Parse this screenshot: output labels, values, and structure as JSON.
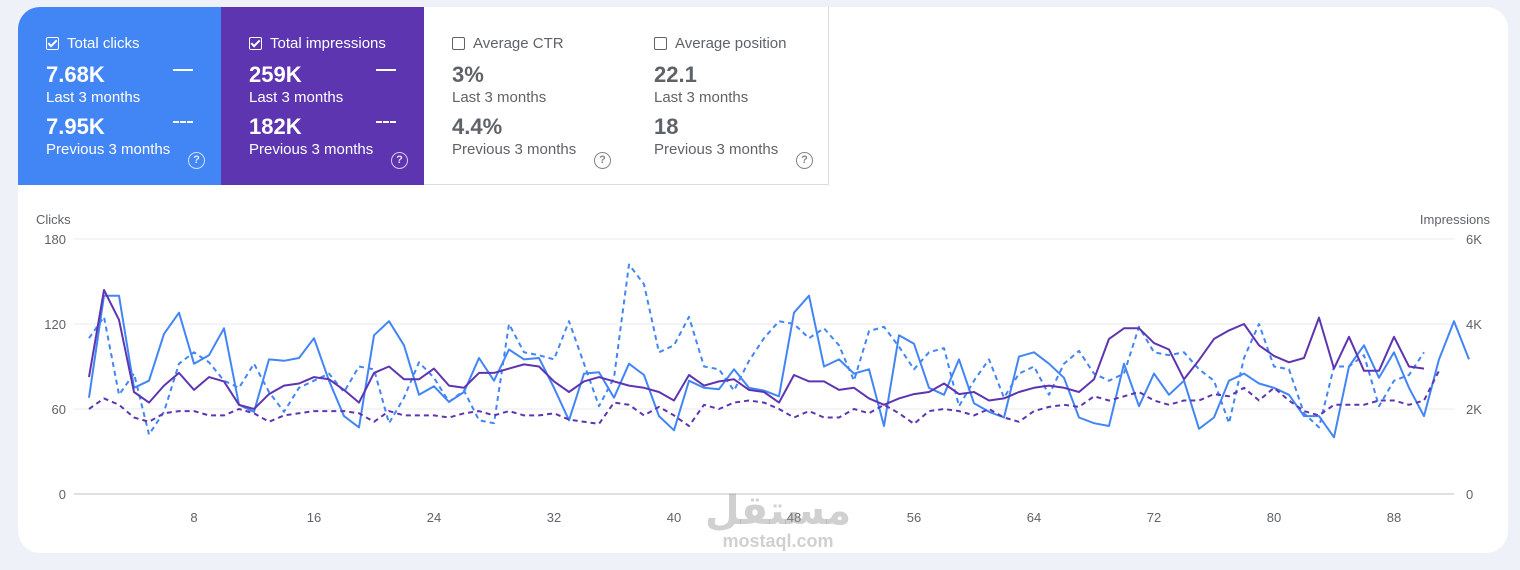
{
  "metrics": [
    {
      "label": "Total clicks",
      "checked": true,
      "value": "7.68K",
      "period": "Last 3 months",
      "prev_value": "7.95K",
      "prev_period": "Previous 3 months",
      "help": "?",
      "color": "#4285f4"
    },
    {
      "label": "Total impressions",
      "checked": true,
      "value": "259K",
      "period": "Last 3 months",
      "prev_value": "182K",
      "prev_period": "Previous 3 months",
      "help": "?",
      "color": "#5e35b1"
    },
    {
      "label": "Average CTR",
      "checked": false,
      "value": "3%",
      "period": "Last 3 months",
      "prev_value": "4.4%",
      "prev_period": "Previous 3 months",
      "help": "?"
    },
    {
      "label": "Average position",
      "checked": false,
      "value": "22.1",
      "period": "Last 3 months",
      "prev_value": "18",
      "prev_period": "Previous 3 months",
      "help": "?"
    }
  ],
  "watermark": {
    "arabic": "مستقل",
    "latin": "mostaql.com"
  },
  "chart_data": {
    "type": "line",
    "left_axis": {
      "label": "Clicks",
      "ticks": [
        "180",
        "120",
        "60",
        "0"
      ],
      "range": [
        0,
        180
      ]
    },
    "right_axis": {
      "label": "Impressions",
      "ticks": [
        "6K",
        "4K",
        "2K",
        "0"
      ],
      "range": [
        0,
        6000
      ]
    },
    "x_ticks": [
      "8",
      "16",
      "24",
      "32",
      "40",
      "48",
      "56",
      "64",
      "72",
      "80",
      "88"
    ],
    "x_range": [
      0,
      92
    ],
    "series": [
      {
        "name": "Total clicks (Last 3 months)",
        "axis": "left",
        "style": "solid",
        "color": "#4285f4",
        "values": [
          68,
          140,
          140,
          75,
          80,
          113,
          128,
          92,
          98,
          117,
          63,
          58,
          95,
          94,
          96,
          110,
          80,
          55,
          47,
          112,
          122,
          105,
          70,
          76,
          65,
          72,
          96,
          80,
          102,
          95,
          96,
          75,
          52,
          85,
          86,
          68,
          92,
          84,
          55,
          45,
          80,
          75,
          74,
          88,
          75,
          73,
          69,
          128,
          140,
          90,
          95,
          85,
          88,
          48,
          112,
          106,
          75,
          70,
          95,
          64,
          58,
          54,
          97,
          100,
          92,
          82,
          54,
          50,
          48,
          92,
          62,
          85,
          70,
          80,
          46,
          54,
          80,
          85,
          78,
          75,
          70,
          55,
          55,
          40,
          90,
          105,
          82,
          100,
          75,
          55,
          95,
          122,
          95
        ]
      },
      {
        "name": "Total clicks (Previous 3 months)",
        "axis": "left",
        "style": "dashed",
        "color": "#4285f4",
        "values": [
          110,
          125,
          70,
          85,
          42,
          58,
          92,
          100,
          93,
          80,
          75,
          92,
          72,
          58,
          75,
          80,
          85,
          72,
          90,
          88,
          50,
          68,
          93,
          82,
          65,
          73,
          52,
          50,
          120,
          100,
          98,
          95,
          122,
          92,
          62,
          82,
          162,
          148,
          100,
          105,
          125,
          90,
          88,
          73,
          94,
          110,
          122,
          120,
          110,
          117,
          105,
          80,
          115,
          118,
          104,
          88,
          100,
          103,
          62,
          80,
          95,
          68,
          85,
          90,
          70,
          92,
          101,
          85,
          80,
          85,
          118,
          100,
          98,
          100,
          88,
          80,
          50,
          96,
          120,
          90,
          88,
          57,
          47,
          90,
          90,
          98,
          62,
          80,
          84,
          100
        ]
      },
      {
        "name": "Total impressions (Last 3 months)",
        "axis": "right",
        "style": "solid",
        "color": "#5e35b1",
        "values": [
          2750,
          4800,
          4100,
          2400,
          2150,
          2550,
          2850,
          2450,
          2750,
          2650,
          2100,
          2000,
          2350,
          2550,
          2600,
          2750,
          2700,
          2450,
          2150,
          2850,
          3000,
          2700,
          2700,
          2950,
          2550,
          2500,
          2850,
          2850,
          2950,
          3050,
          3000,
          2650,
          2400,
          2650,
          2750,
          2650,
          2550,
          2500,
          2400,
          2200,
          2800,
          2550,
          2650,
          2700,
          2450,
          2400,
          2150,
          2800,
          2650,
          2650,
          2450,
          2500,
          2250,
          2100,
          2250,
          2350,
          2400,
          2600,
          2350,
          2400,
          2200,
          2250,
          2400,
          2500,
          2550,
          2500,
          2400,
          2700,
          3650,
          3900,
          3900,
          3550,
          3400,
          2700,
          3150,
          3650,
          3850,
          4000,
          3500,
          3250,
          3100,
          3200,
          4150,
          2950,
          3700,
          2900,
          2900,
          3700,
          3000,
          2950
        ]
      },
      {
        "name": "Total impressions (Previous 3 months)",
        "axis": "right",
        "style": "dashed",
        "color": "#5e35b1",
        "values": [
          2000,
          2250,
          2100,
          1800,
          1700,
          1900,
          1950,
          1950,
          1850,
          1850,
          2000,
          1900,
          1700,
          1850,
          1900,
          1950,
          1950,
          1950,
          1900,
          1700,
          1950,
          1850,
          1850,
          1850,
          1800,
          1900,
          1950,
          1850,
          1950,
          1850,
          1850,
          1900,
          1750,
          1700,
          1650,
          2150,
          2100,
          1850,
          2050,
          1850,
          1600,
          2100,
          2000,
          2150,
          2200,
          2150,
          2000,
          1800,
          1950,
          1800,
          1800,
          2000,
          1900,
          2100,
          1900,
          1650,
          1950,
          2000,
          1950,
          1850,
          2000,
          1800,
          1700,
          1950,
          2050,
          2100,
          2050,
          2300,
          2200,
          2300,
          2400,
          2200,
          2100,
          2200,
          2200,
          2350,
          2300,
          2500,
          2200,
          2500,
          2200,
          1950,
          1850,
          2100,
          2100,
          2100,
          2200,
          2200,
          2100,
          2200,
          2900
        ]
      }
    ]
  }
}
